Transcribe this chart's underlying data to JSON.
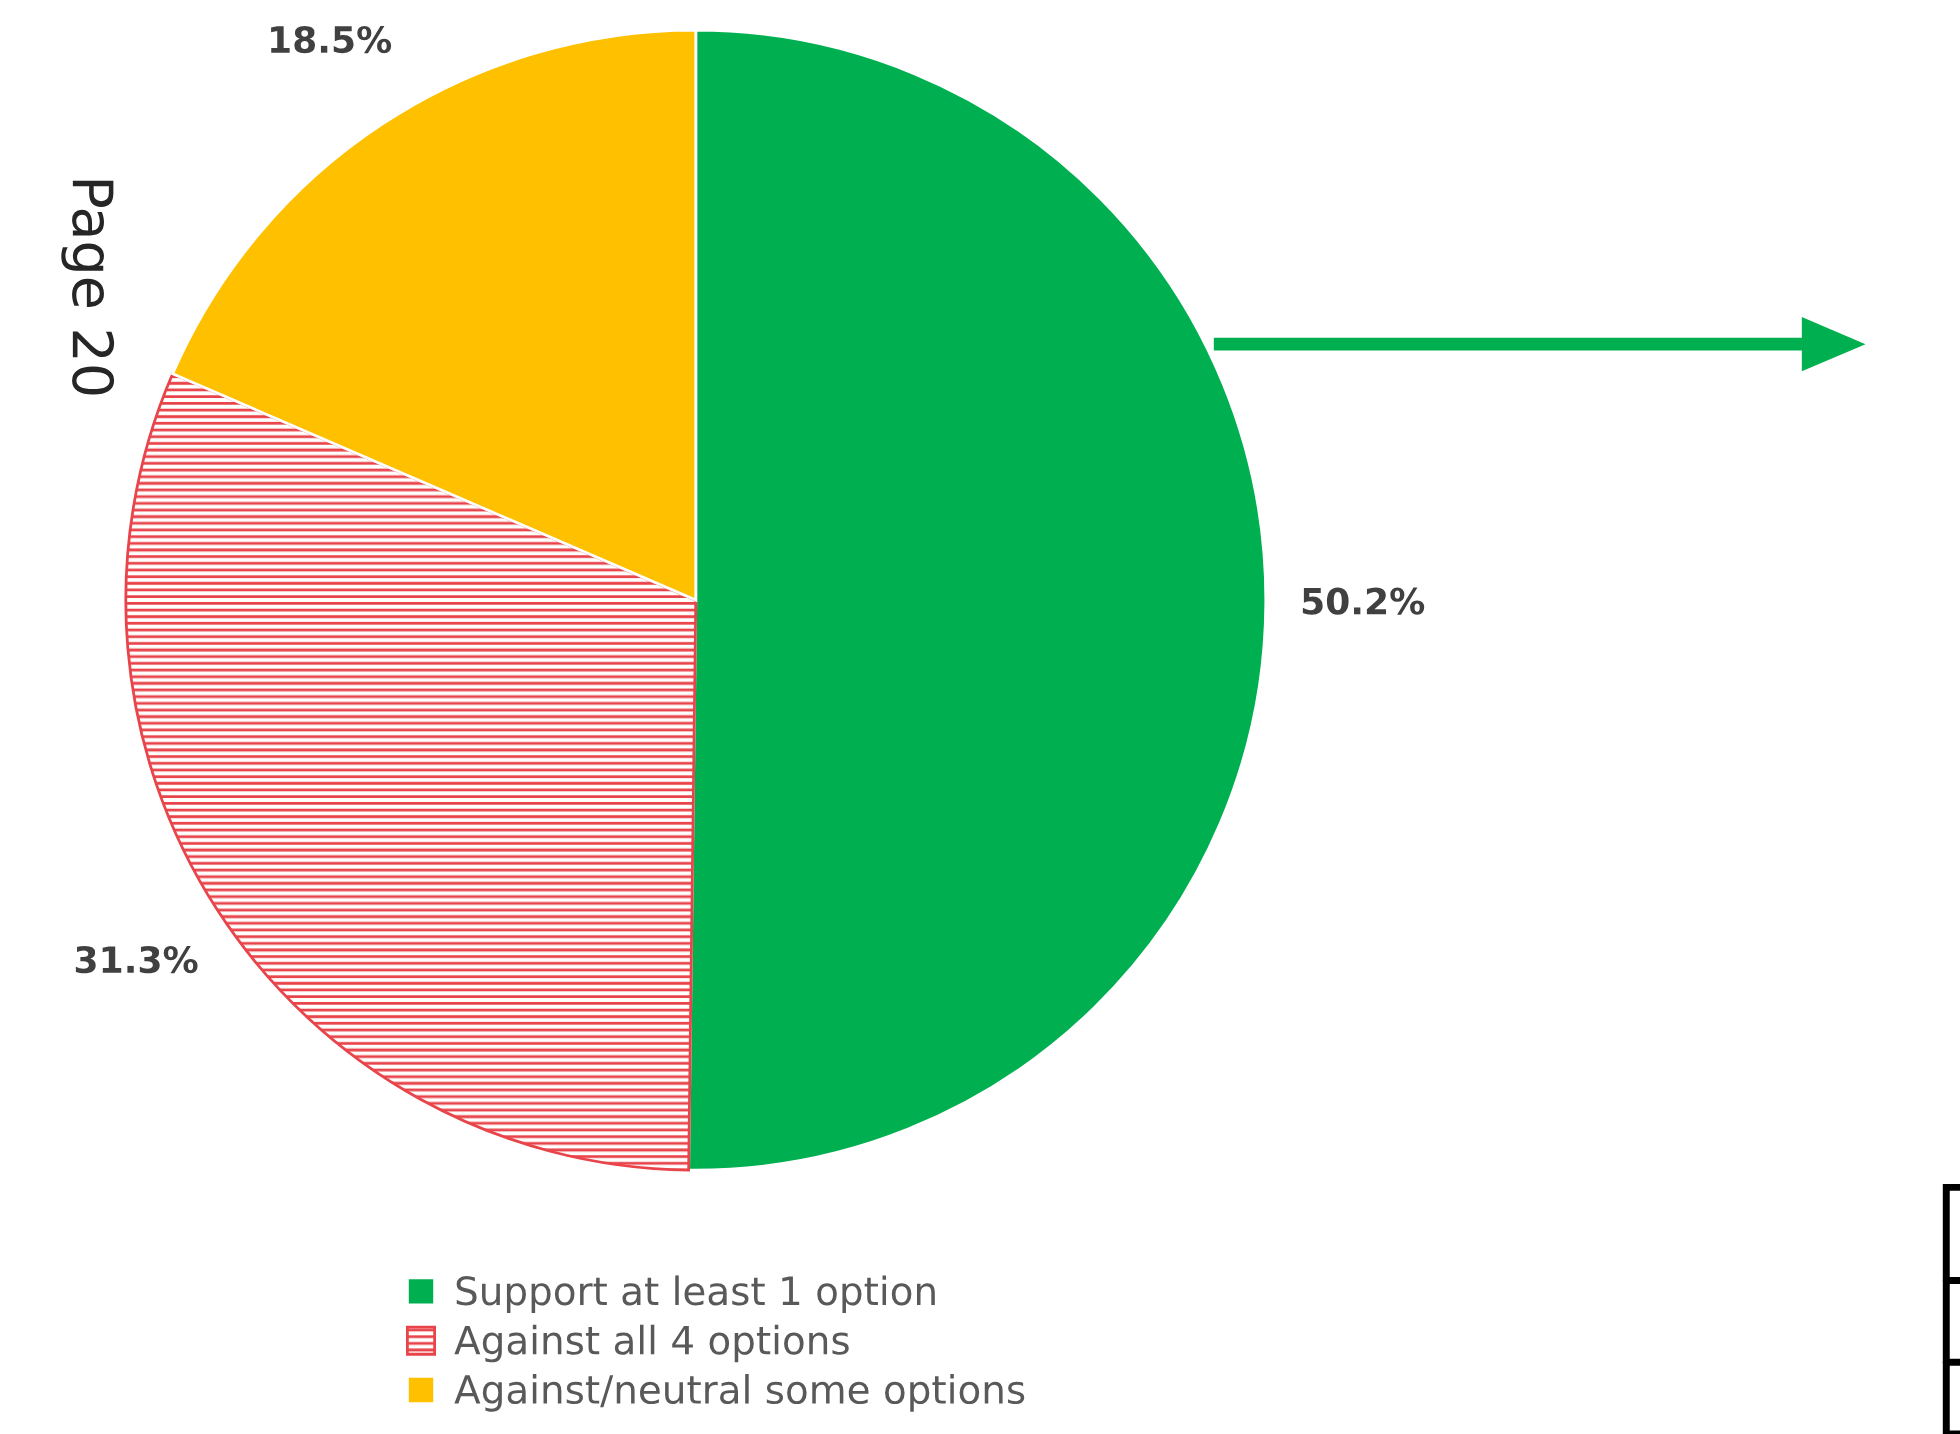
{
  "chart_data": {
    "type": "pie",
    "categories": [
      "Support at least 1 option",
      "Against all 4 options",
      "Against/neutral some options"
    ],
    "values": [
      50.2,
      31.3,
      18.5
    ],
    "colors": [
      "#00b050",
      "#e8444a",
      "#ffc000"
    ],
    "value_labels": [
      "50.2%",
      "31.3%",
      "18.5%"
    ],
    "legend": "bottom",
    "annotations": [
      "Page 20"
    ]
  }
}
